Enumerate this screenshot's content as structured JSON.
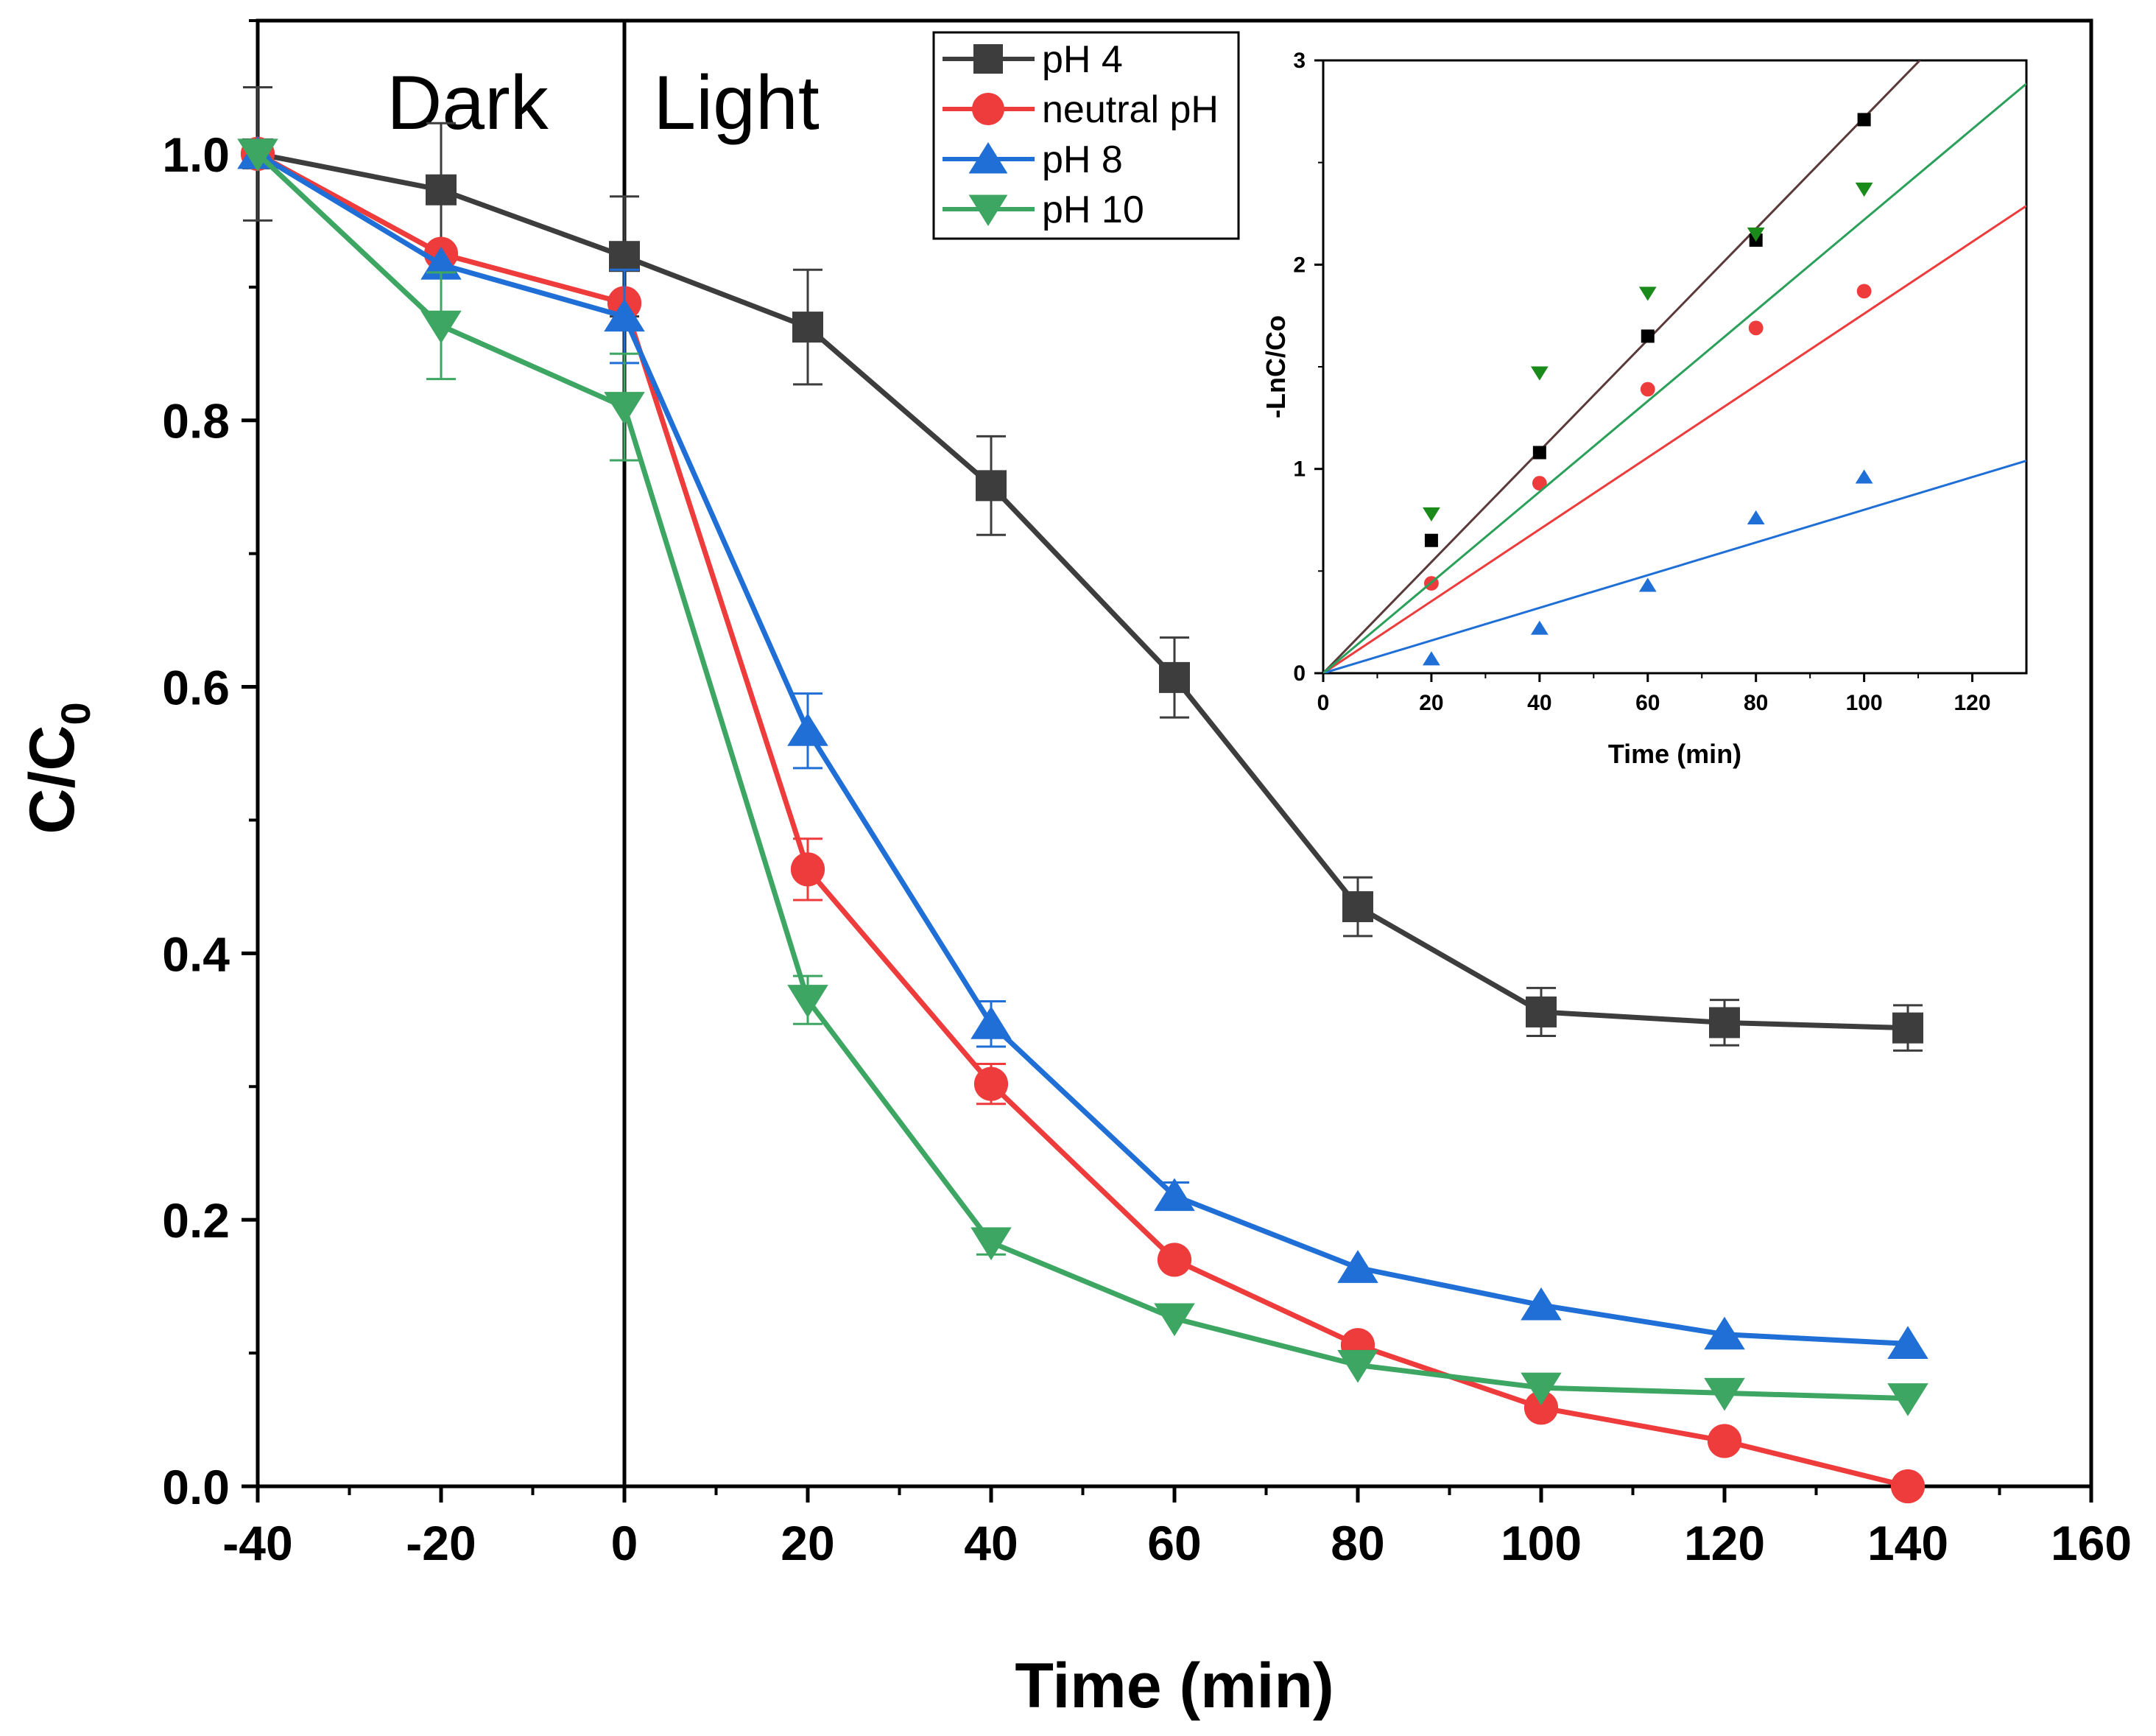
{
  "chart_data": [
    {
      "type": "line",
      "title": "",
      "xlabel": "Time (min)",
      "ylabel": "C/C",
      "ylabel_sub": "0",
      "xlim": [
        -40,
        160
      ],
      "ylim": [
        0,
        1.1
      ],
      "x_ticks": [
        -40,
        -20,
        0,
        20,
        40,
        60,
        80,
        100,
        120,
        140,
        160
      ],
      "x_tick_labels": [
        "-40",
        "-20",
        "0",
        "20",
        "40",
        "60",
        "80",
        "100",
        "120",
        "140",
        "160"
      ],
      "y_ticks": [
        0,
        0.2,
        0.4,
        0.6,
        0.8,
        1.0
      ],
      "y_tick_labels": [
        "0.0",
        "0.2",
        "0.4",
        "0.6",
        "0.8",
        "1.0"
      ],
      "regions": [
        {
          "label": "Dark"
        },
        {
          "label": "Light"
        }
      ],
      "divider_x": 0,
      "legend_position": "top-center",
      "x": [
        -40,
        -20,
        0,
        20,
        40,
        60,
        80,
        100,
        120,
        140
      ],
      "series": [
        {
          "name": "pH 4",
          "color": "#3d3d3d",
          "marker": "square",
          "values": [
            1.0,
            0.973,
            0.923,
            0.87,
            0.751,
            0.607,
            0.435,
            0.356,
            0.348,
            0.344
          ],
          "errors": [
            0.05,
            0.05,
            0.045,
            0.043,
            0.037,
            0.03,
            0.022,
            0.018,
            0.017,
            0.017
          ]
        },
        {
          "name": "neutral pH",
          "color": "#ee3b3b",
          "marker": "circle",
          "values": [
            1.0,
            0.925,
            0.888,
            0.463,
            0.302,
            0.17,
            0.106,
            0.059,
            0.034,
            0.0
          ],
          "errors": [
            0.0,
            0.0,
            0.0,
            0.023,
            0.015,
            0.0,
            0.0,
            0.0,
            0.0,
            0.0
          ]
        },
        {
          "name": "pH 8",
          "color": "#1f6fd6",
          "marker": "triangle-up",
          "values": [
            1.0,
            0.917,
            0.878,
            0.567,
            0.347,
            0.218,
            0.164,
            0.136,
            0.114,
            0.107
          ],
          "errors": [
            0.0,
            0.0,
            0.035,
            0.028,
            0.017,
            0.01,
            0.0,
            0.0,
            0.0,
            0.0
          ]
        },
        {
          "name": "pH 10",
          "color": "#3ea663",
          "marker": "triangle-down",
          "values": [
            1.0,
            0.871,
            0.81,
            0.365,
            0.183,
            0.126,
            0.091,
            0.074,
            0.07,
            0.066
          ],
          "errors": [
            0.0,
            0.04,
            0.04,
            0.018,
            0.009,
            0.0,
            0.0,
            0.0,
            0.0,
            0.0
          ]
        }
      ]
    },
    {
      "type": "scatter",
      "title": "",
      "xlabel": "Time (min)",
      "ylabel": "-LnC/Co",
      "xlim": [
        0,
        130
      ],
      "ylim": [
        0,
        3
      ],
      "x_ticks": [
        0,
        20,
        40,
        60,
        80,
        100,
        120
      ],
      "x_tick_labels": [
        "0",
        "20",
        "40",
        "60",
        "80",
        "100",
        "120"
      ],
      "y_ticks": [
        0,
        1,
        2,
        3
      ],
      "y_tick_labels": [
        "0",
        "1",
        "2",
        "3"
      ],
      "x": [
        20,
        40,
        60,
        80,
        100
      ],
      "series": [
        {
          "name": "pH 4",
          "color": "#000000",
          "marker": "square",
          "values": [
            0.65,
            1.08,
            1.65,
            2.12,
            2.71
          ],
          "fit_slope": 0.0272,
          "fit_color": "#5a3a3a"
        },
        {
          "name": "neutral pH",
          "color": "#ee3b3b",
          "marker": "circle",
          "values": [
            0.44,
            0.93,
            1.39,
            1.69,
            1.87
          ],
          "fit_slope": 0.0176,
          "fit_color": "#ee3b3b"
        },
        {
          "name": "pH 8",
          "color": "#1f6fd6",
          "marker": "triangle-up",
          "values": [
            0.07,
            0.22,
            0.43,
            0.76,
            0.96
          ],
          "fit_slope": 0.008,
          "fit_color": "#1f6fd6"
        },
        {
          "name": "pH 10",
          "color": "#1a8a1a",
          "marker": "triangle-down",
          "values": [
            0.78,
            1.47,
            1.86,
            2.15,
            2.37
          ],
          "fit_slope": 0.0222,
          "fit_color": "#2aa05a"
        }
      ]
    }
  ]
}
